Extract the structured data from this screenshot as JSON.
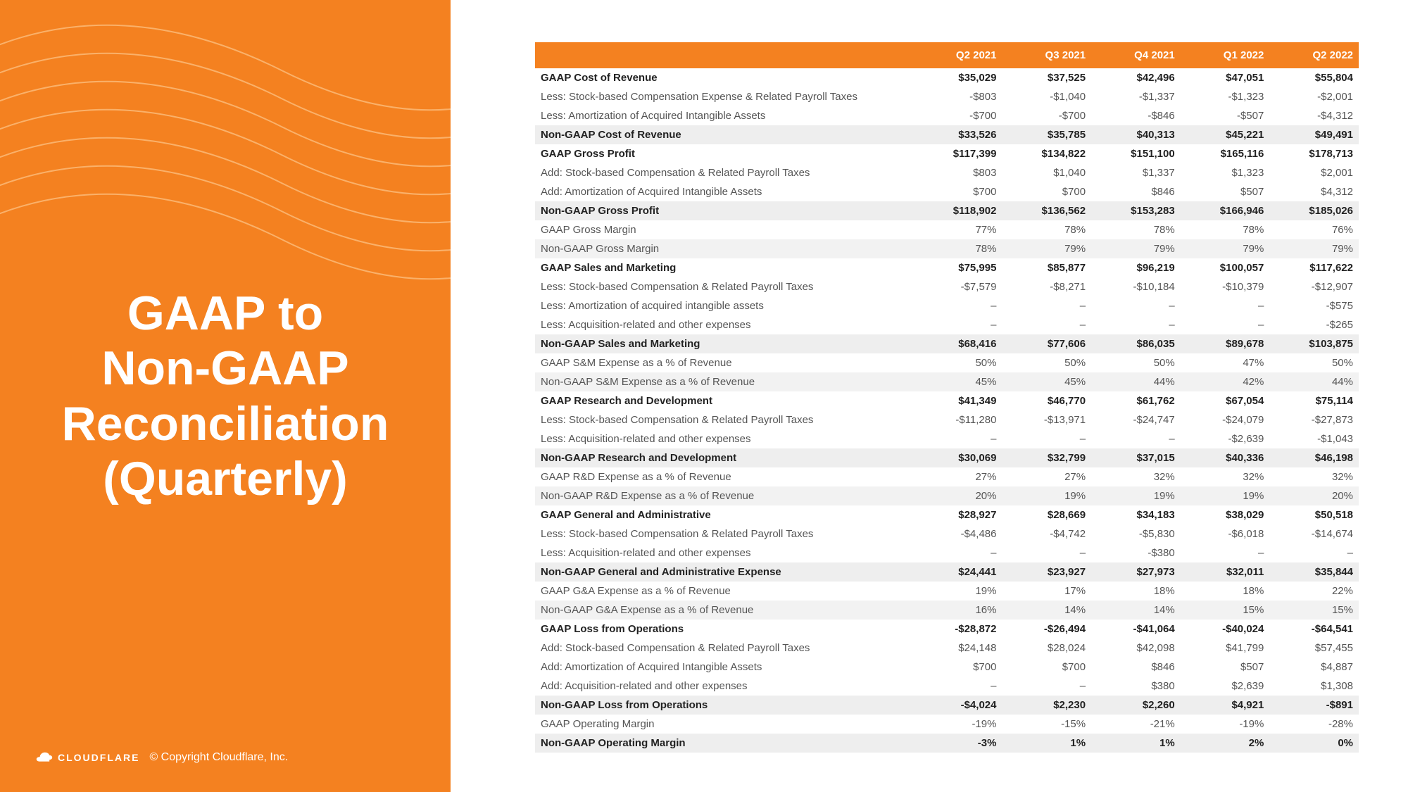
{
  "colors": {
    "brand": "#f48120",
    "wave_stroke": "#ffd9a8",
    "text_dark": "#222222",
    "text_muted": "#555555",
    "row_shade": "#f2f2f2",
    "white": "#ffffff"
  },
  "left": {
    "title_lines": [
      "GAAP to",
      "Non-GAAP",
      "Reconciliation",
      "(Quarterly)"
    ],
    "logo_text": "CLOUDFLARE",
    "copyright": "© Copyright Cloudflare, Inc."
  },
  "table": {
    "columns": [
      "",
      "Q2 2021",
      "Q3 2021",
      "Q4 2021",
      "Q1 2022",
      "Q2 2022"
    ],
    "rows": [
      {
        "bold": true,
        "shade": false,
        "cells": [
          "GAAP Cost of Revenue",
          "$35,029",
          "$37,525",
          "$42,496",
          "$47,051",
          "$55,804"
        ]
      },
      {
        "bold": false,
        "shade": false,
        "cells": [
          "Less: Stock-based Compensation Expense & Related Payroll Taxes",
          "-$803",
          "-$1,040",
          "-$1,337",
          "-$1,323",
          "-$2,001"
        ]
      },
      {
        "bold": false,
        "shade": false,
        "cells": [
          "Less: Amortization of Acquired Intangible Assets",
          "-$700",
          "-$700",
          "-$846",
          "-$507",
          "-$4,312"
        ]
      },
      {
        "bold": true,
        "shade": true,
        "cells": [
          "Non-GAAP Cost of Revenue",
          "$33,526",
          "$35,785",
          "$40,313",
          "$45,221",
          "$49,491"
        ]
      },
      {
        "bold": true,
        "shade": false,
        "cells": [
          "GAAP Gross Profit",
          "$117,399",
          "$134,822",
          "$151,100",
          "$165,116",
          "$178,713"
        ]
      },
      {
        "bold": false,
        "shade": false,
        "cells": [
          "Add: Stock-based Compensation & Related Payroll Taxes",
          "$803",
          "$1,040",
          "$1,337",
          "$1,323",
          "$2,001"
        ]
      },
      {
        "bold": false,
        "shade": false,
        "cells": [
          "Add: Amortization of Acquired Intangible Assets",
          "$700",
          "$700",
          "$846",
          "$507",
          "$4,312"
        ]
      },
      {
        "bold": true,
        "shade": true,
        "cells": [
          "Non-GAAP Gross Profit",
          "$118,902",
          "$136,562",
          "$153,283",
          "$166,946",
          "$185,026"
        ]
      },
      {
        "bold": false,
        "shade": false,
        "cells": [
          "GAAP Gross Margin",
          "77%",
          "78%",
          "78%",
          "78%",
          "76%"
        ]
      },
      {
        "bold": false,
        "shade": true,
        "cells": [
          "Non-GAAP Gross Margin",
          "78%",
          "79%",
          "79%",
          "79%",
          "79%"
        ]
      },
      {
        "bold": true,
        "shade": false,
        "cells": [
          "GAAP Sales and Marketing",
          "$75,995",
          "$85,877",
          "$96,219",
          "$100,057",
          "$117,622"
        ]
      },
      {
        "bold": false,
        "shade": false,
        "cells": [
          "Less: Stock-based Compensation & Related Payroll Taxes",
          "-$7,579",
          "-$8,271",
          "-$10,184",
          "-$10,379",
          "-$12,907"
        ]
      },
      {
        "bold": false,
        "shade": false,
        "cells": [
          "Less: Amortization of acquired intangible assets",
          "–",
          "–",
          "–",
          "–",
          "-$575"
        ]
      },
      {
        "bold": false,
        "shade": false,
        "cells": [
          "Less: Acquisition-related and other expenses",
          "–",
          "–",
          "–",
          "–",
          "-$265"
        ]
      },
      {
        "bold": true,
        "shade": true,
        "cells": [
          "Non-GAAP Sales and Marketing",
          "$68,416",
          "$77,606",
          "$86,035",
          "$89,678",
          "$103,875"
        ]
      },
      {
        "bold": false,
        "shade": false,
        "cells": [
          "GAAP S&M Expense as a % of Revenue",
          "50%",
          "50%",
          "50%",
          "47%",
          "50%"
        ]
      },
      {
        "bold": false,
        "shade": true,
        "cells": [
          "Non-GAAP S&M Expense as a % of Revenue",
          "45%",
          "45%",
          "44%",
          "42%",
          "44%"
        ]
      },
      {
        "bold": true,
        "shade": false,
        "cells": [
          "GAAP Research and Development",
          "$41,349",
          "$46,770",
          "$61,762",
          "$67,054",
          "$75,114"
        ]
      },
      {
        "bold": false,
        "shade": false,
        "cells": [
          "Less: Stock-based Compensation & Related Payroll Taxes",
          "-$11,280",
          "-$13,971",
          "-$24,747",
          "-$24,079",
          "-$27,873"
        ]
      },
      {
        "bold": false,
        "shade": false,
        "cells": [
          "Less: Acquisition-related and other expenses",
          "–",
          "–",
          "–",
          "-$2,639",
          "-$1,043"
        ]
      },
      {
        "bold": true,
        "shade": true,
        "cells": [
          "Non-GAAP Research and Development",
          "$30,069",
          "$32,799",
          "$37,015",
          "$40,336",
          "$46,198"
        ]
      },
      {
        "bold": false,
        "shade": false,
        "cells": [
          "GAAP R&D Expense as a % of Revenue",
          "27%",
          "27%",
          "32%",
          "32%",
          "32%"
        ]
      },
      {
        "bold": false,
        "shade": true,
        "cells": [
          "Non-GAAP R&D Expense as a % of Revenue",
          "20%",
          "19%",
          "19%",
          "19%",
          "20%"
        ]
      },
      {
        "bold": true,
        "shade": false,
        "cells": [
          "GAAP General and Administrative",
          "$28,927",
          "$28,669",
          "$34,183",
          "$38,029",
          "$50,518"
        ]
      },
      {
        "bold": false,
        "shade": false,
        "cells": [
          "Less: Stock-based Compensation & Related Payroll Taxes",
          "-$4,486",
          "-$4,742",
          "-$5,830",
          "-$6,018",
          "-$14,674"
        ]
      },
      {
        "bold": false,
        "shade": false,
        "cells": [
          "Less: Acquisition-related and other expenses",
          "–",
          "–",
          "-$380",
          "–",
          "–"
        ]
      },
      {
        "bold": true,
        "shade": true,
        "cells": [
          "Non-GAAP General and Administrative Expense",
          "$24,441",
          "$23,927",
          "$27,973",
          "$32,011",
          "$35,844"
        ]
      },
      {
        "bold": false,
        "shade": false,
        "cells": [
          "GAAP G&A Expense as a % of Revenue",
          "19%",
          "17%",
          "18%",
          "18%",
          "22%"
        ]
      },
      {
        "bold": false,
        "shade": true,
        "cells": [
          "Non-GAAP G&A Expense as a % of Revenue",
          "16%",
          "14%",
          "14%",
          "15%",
          "15%"
        ]
      },
      {
        "bold": true,
        "shade": false,
        "cells": [
          "GAAP Loss from Operations",
          "-$28,872",
          "-$26,494",
          "-$41,064",
          "-$40,024",
          "-$64,541"
        ]
      },
      {
        "bold": false,
        "shade": false,
        "cells": [
          "Add: Stock-based Compensation & Related Payroll Taxes",
          "$24,148",
          "$28,024",
          "$42,098",
          "$41,799",
          "$57,455"
        ]
      },
      {
        "bold": false,
        "shade": false,
        "cells": [
          "Add: Amortization of Acquired Intangible Assets",
          "$700",
          "$700",
          "$846",
          "$507",
          "$4,887"
        ]
      },
      {
        "bold": false,
        "shade": false,
        "cells": [
          "Add: Acquisition-related and other expenses",
          "–",
          "–",
          "$380",
          "$2,639",
          "$1,308"
        ]
      },
      {
        "bold": true,
        "shade": true,
        "cells": [
          "Non-GAAP Loss from Operations",
          "-$4,024",
          "$2,230",
          "$2,260",
          "$4,921",
          "-$891"
        ]
      },
      {
        "bold": false,
        "shade": false,
        "cells": [
          "GAAP Operating Margin",
          "-19%",
          "-15%",
          "-21%",
          "-19%",
          "-28%"
        ]
      },
      {
        "bold": true,
        "shade": true,
        "cells": [
          "Non-GAAP Operating Margin",
          "-3%",
          "1%",
          "1%",
          "2%",
          "0%"
        ]
      }
    ]
  }
}
